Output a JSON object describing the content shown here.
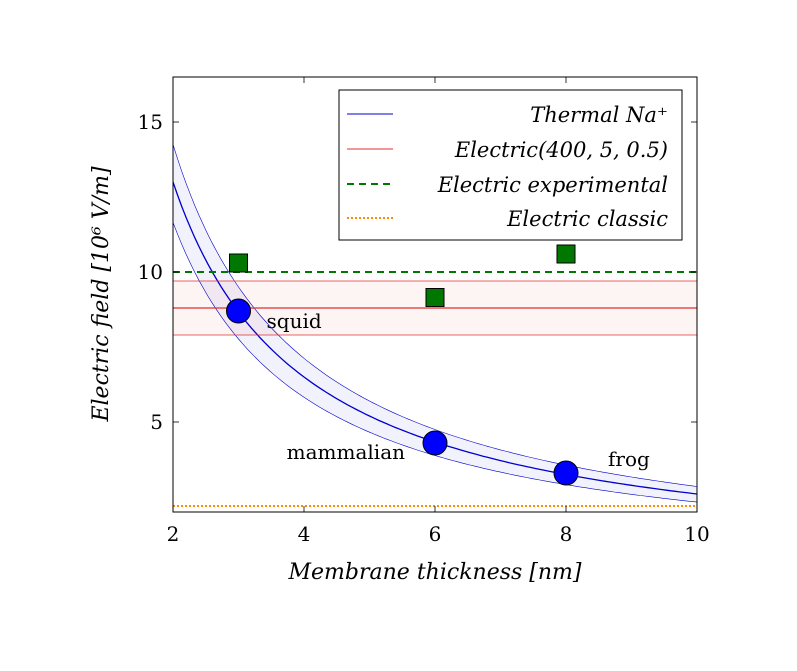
{
  "chart_data": {
    "type": "line",
    "xlabel": "Membrane thickness [nm]",
    "ylabel": "Electric field [10⁶ V/m]",
    "xlim": [
      2,
      10
    ],
    "ylim": [
      2,
      16.5
    ],
    "xticks": [
      "2",
      "4",
      "6",
      "8",
      "10"
    ],
    "yticks": [
      "5",
      "10",
      "15"
    ],
    "grid": false,
    "legend_position": "top-right",
    "series": [
      {
        "name": "Thermal Na⁺",
        "kind": "curve_band",
        "color": "#0000cc",
        "center_k": 26,
        "band_low_k": 23.3,
        "band_high_k": 28.5
      },
      {
        "name": "Electric(400, 5, 0.5)",
        "kind": "horizontal_band",
        "color": "#e03030",
        "center": 8.8,
        "band_low": 7.9,
        "band_high": 9.7
      },
      {
        "name": "Electric experimental",
        "kind": "horizontal_line",
        "color": "#007700",
        "value": 10,
        "points": [
          {
            "x": 3,
            "y": 10.3
          },
          {
            "x": 6,
            "y": 9.15
          },
          {
            "x": 8,
            "y": 10.6
          }
        ]
      },
      {
        "name": "Electric classic",
        "kind": "horizontal_line",
        "color": "#ff8c00",
        "value": 2.2
      }
    ],
    "markers": [
      {
        "x": 3,
        "y": 8.7,
        "label": "squid"
      },
      {
        "x": 6,
        "y": 4.3,
        "label": "mammalian"
      },
      {
        "x": 8,
        "y": 3.3,
        "label": "frog"
      }
    ]
  }
}
